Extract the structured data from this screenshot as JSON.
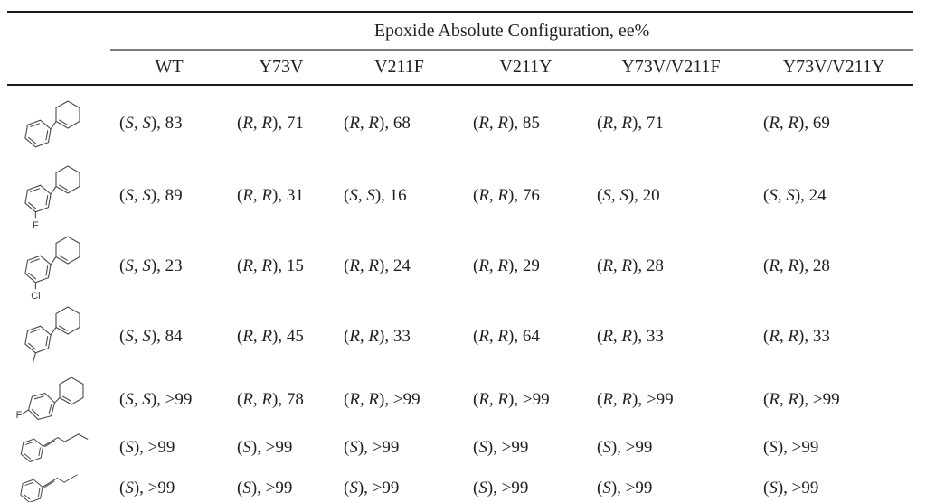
{
  "table": {
    "span_header": "Epoxide Absolute Configuration, ee%",
    "columns": [
      "WT",
      "Y73V",
      "V211F",
      "V211Y",
      "Y73V/V211F",
      "Y73V/V211Y"
    ],
    "rows": [
      {
        "structure_type": "phenyl-cyclohexenyl",
        "substituent_label": "",
        "cells": [
          {
            "config": "S, S",
            "ee": "83"
          },
          {
            "config": "R, R",
            "ee": "71"
          },
          {
            "config": "R, R",
            "ee": "68"
          },
          {
            "config": "R, R",
            "ee": "85"
          },
          {
            "config": "R, R",
            "ee": "71"
          },
          {
            "config": "R, R",
            "ee": "69"
          }
        ]
      },
      {
        "structure_type": "meta-label-phenyl-cyclohexenyl",
        "substituent_label": "F",
        "cells": [
          {
            "config": "S, S",
            "ee": "89"
          },
          {
            "config": "R, R",
            "ee": "31"
          },
          {
            "config": "S, S",
            "ee": "16"
          },
          {
            "config": "R, R",
            "ee": "76"
          },
          {
            "config": "S, S",
            "ee": "20"
          },
          {
            "config": "S, S",
            "ee": "24"
          }
        ]
      },
      {
        "structure_type": "meta-label-phenyl-cyclohexenyl",
        "substituent_label": "Cl",
        "cells": [
          {
            "config": "S, S",
            "ee": "23"
          },
          {
            "config": "R, R",
            "ee": "15"
          },
          {
            "config": "R, R",
            "ee": "24"
          },
          {
            "config": "R, R",
            "ee": "29"
          },
          {
            "config": "R, R",
            "ee": "28"
          },
          {
            "config": "R, R",
            "ee": "28"
          }
        ]
      },
      {
        "structure_type": "meta-methyl-phenyl-cyclohexenyl",
        "substituent_label": "",
        "cells": [
          {
            "config": "S, S",
            "ee": "84"
          },
          {
            "config": "R, R",
            "ee": "45"
          },
          {
            "config": "R, R",
            "ee": "33"
          },
          {
            "config": "R, R",
            "ee": "64"
          },
          {
            "config": "R, R",
            "ee": "33"
          },
          {
            "config": "R, R",
            "ee": "33"
          }
        ]
      },
      {
        "structure_type": "para-label-phenyl-cyclohexenyl",
        "substituent_label": "F",
        "cells": [
          {
            "config": "S, S",
            "ee": ">99"
          },
          {
            "config": "R, R",
            "ee": "78"
          },
          {
            "config": "R, R",
            "ee": ">99"
          },
          {
            "config": "R, R",
            "ee": ">99"
          },
          {
            "config": "R, R",
            "ee": ">99"
          },
          {
            "config": "R, R",
            "ee": ">99"
          }
        ]
      },
      {
        "structure_type": "phenyl-butenyl",
        "substituent_label": "",
        "cells": [
          {
            "config": "S",
            "ee": ">99"
          },
          {
            "config": "S",
            "ee": ">99"
          },
          {
            "config": "S",
            "ee": ">99"
          },
          {
            "config": "S",
            "ee": ">99"
          },
          {
            "config": "S",
            "ee": ">99"
          },
          {
            "config": "S",
            "ee": ">99"
          }
        ]
      },
      {
        "structure_type": "phenyl-propenyl",
        "substituent_label": "",
        "cells": [
          {
            "config": "S",
            "ee": ">99"
          },
          {
            "config": "S",
            "ee": ">99"
          },
          {
            "config": "S",
            "ee": ">99"
          },
          {
            "config": "S",
            "ee": ">99"
          },
          {
            "config": "S",
            "ee": ">99"
          },
          {
            "config": "S",
            "ee": ">99"
          }
        ]
      }
    ]
  },
  "colors": {
    "rule_dark": "#1c1c1c",
    "rule_gray": "#7d7d7d",
    "ink": "#1f1f1f",
    "structure_stroke": "#4a4a4a"
  }
}
